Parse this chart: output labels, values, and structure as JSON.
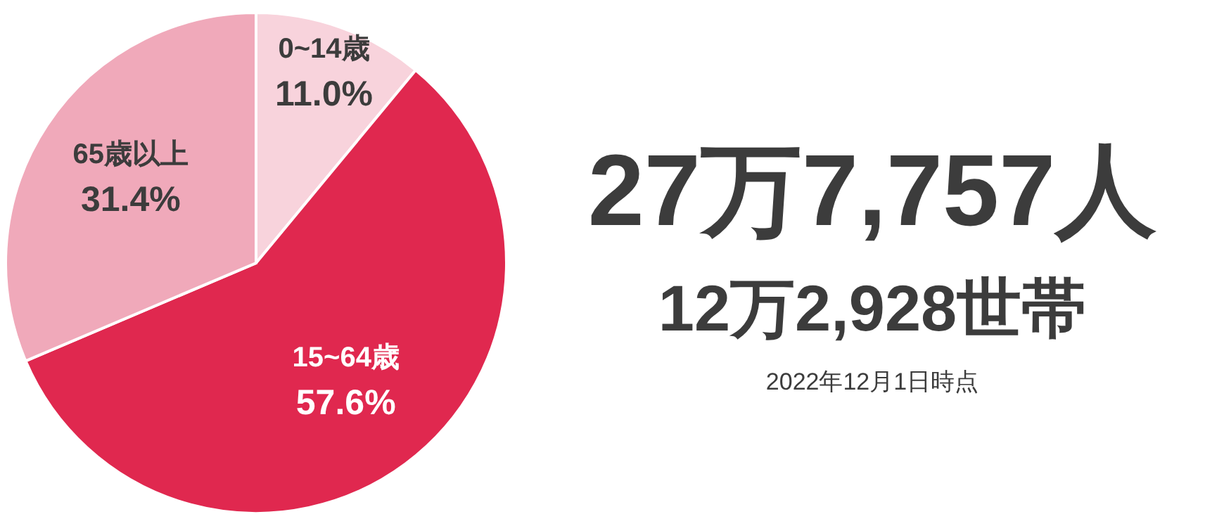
{
  "chart_data": [
    {
      "type": "pie",
      "categories": [
        "0~14歳",
        "15~64歳",
        "65歳以上"
      ],
      "values": [
        11.0,
        57.6,
        31.4
      ],
      "colors": [
        "#f8d3dc",
        "#e0284f",
        "#f0a9ba"
      ],
      "value_labels": [
        "11.0%",
        "57.6%",
        "31.4%"
      ]
    },
    {
      "type": "other",
      "title": "27万7,757人",
      "subtitle": "12万2,928世帯",
      "annotations": [
        "2022年12月1日時点"
      ]
    }
  ]
}
